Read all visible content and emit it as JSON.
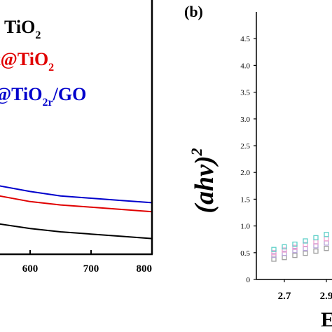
{
  "chart_data": [
    {
      "panel": "a",
      "type": "line",
      "title": "",
      "xlabel": "",
      "ylabel": "",
      "x_ticks": [
        "600",
        "700",
        "800"
      ],
      "xlim": [
        500,
        800
      ],
      "legend": {
        "placement": "top",
        "entries": [
          {
            "text": "TiO",
            "sub": "2",
            "tail": "",
            "tail_sub": "",
            "tail2": "",
            "color": "#000000"
          },
          {
            "text": "t@TiO",
            "sub": "2",
            "tail": "",
            "tail_sub": "",
            "tail2": "",
            "color": "#e00000"
          },
          {
            "text": "@TiO",
            "sub": "2",
            "tail": "/GO",
            "tail_sub": "r",
            "tail2": "",
            "color": "#0000cc"
          }
        ]
      },
      "series": [
        {
          "color": "#0000cc",
          "x": [
            500,
            550,
            600,
            650,
            700,
            750,
            800
          ],
          "y": [
            0.7,
            0.61,
            0.56,
            0.52,
            0.5,
            0.48,
            0.46
          ]
        },
        {
          "color": "#e00000",
          "x": [
            500,
            550,
            600,
            650,
            700,
            750,
            800
          ],
          "y": [
            0.6,
            0.52,
            0.47,
            0.44,
            0.42,
            0.4,
            0.38
          ]
        },
        {
          "color": "#000000",
          "x": [
            500,
            550,
            600,
            650,
            700,
            750,
            800
          ],
          "y": [
            0.35,
            0.27,
            0.23,
            0.2,
            0.18,
            0.16,
            0.14
          ]
        }
      ],
      "ylim": [
        0,
        1
      ]
    },
    {
      "panel": "b",
      "panel_label": "(b)",
      "type": "scatter",
      "ylabel": "(ahv)",
      "ylabel_sup": "2",
      "xlabel": "E",
      "ylim": [
        0,
        4.5
      ],
      "y_ticks": [
        "0",
        "0.5",
        "1.0",
        "1.5",
        "2.0",
        "2.5",
        "3.0",
        "3.5",
        "4.0",
        "4.5"
      ],
      "x_ticks": [
        "2.7",
        "2.9"
      ],
      "series": [
        {
          "color": "#a0a0a0",
          "x": [
            2.65,
            2.7,
            2.75,
            2.8,
            2.85,
            2.9,
            2.95,
            3.0
          ],
          "y": [
            0.38,
            0.41,
            0.45,
            0.49,
            0.53,
            0.58,
            0.63,
            0.68
          ]
        },
        {
          "color": "#b8a3d8",
          "x": [
            2.65,
            2.7,
            2.75,
            2.8,
            2.85,
            2.9,
            2.95,
            3.0
          ],
          "y": [
            0.45,
            0.49,
            0.54,
            0.58,
            0.63,
            0.68,
            0.73,
            0.78
          ]
        },
        {
          "color": "#f0a0d0",
          "x": [
            2.65,
            2.7,
            2.75,
            2.8,
            2.85,
            2.9,
            2.95,
            3.0
          ],
          "y": [
            0.5,
            0.55,
            0.6,
            0.65,
            0.7,
            0.76,
            0.82,
            0.88
          ]
        },
        {
          "color": "#5fd0c8",
          "x": [
            2.65,
            2.7,
            2.75,
            2.8,
            2.85,
            2.9,
            2.95,
            3.0
          ],
          "y": [
            0.56,
            0.61,
            0.66,
            0.72,
            0.78,
            0.84,
            0.9,
            0.97
          ]
        }
      ]
    }
  ]
}
